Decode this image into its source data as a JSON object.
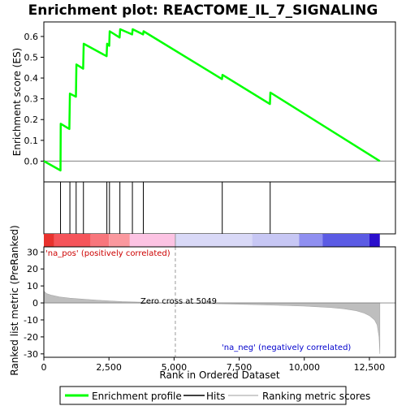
{
  "chart_data": {
    "type": "line",
    "title": "Enrichment plot: REACTOME_IL_7_SIGNALING",
    "xlabel": "Rank in Ordered Dataset",
    "xlim": [
      0,
      13500
    ],
    "x_ticks": [
      0,
      2500,
      5000,
      7500,
      10000,
      12500
    ],
    "x_tick_labels": [
      "0",
      "2,500",
      "5,000",
      "7,500",
      "10,000",
      "12,500"
    ],
    "panels": {
      "es": {
        "ylabel": "Enrichment score (ES)",
        "ylim": [
          -0.1,
          0.67
        ],
        "y_ticks": [
          0.0,
          0.1,
          0.2,
          0.3,
          0.4,
          0.5,
          0.6
        ],
        "y_tick_labels": [
          "0.0",
          "0.1",
          "0.2",
          "0.3",
          "0.4",
          "0.5",
          "0.6"
        ]
      },
      "metric": {
        "ylabel": "Ranked list metric (PreRanked)",
        "ylim": [
          -32,
          33
        ],
        "y_ticks": [
          -30,
          -20,
          -10,
          0,
          10,
          20,
          30
        ],
        "y_tick_labels": [
          "-30",
          "-20",
          "-10",
          "0",
          "10",
          "20",
          "30"
        ]
      }
    },
    "series": [
      {
        "name": "Enrichment profile",
        "color": "#00ff00",
        "x": [
          0,
          640,
          650,
          980,
          1000,
          1230,
          1250,
          1510,
          1530,
          2410,
          2430,
          2510,
          2530,
          2910,
          2930,
          3390,
          3410,
          3810,
          3830,
          6840,
          6860,
          8680,
          8700,
          12900
        ],
        "y": [
          0.0,
          -0.045,
          0.18,
          0.155,
          0.325,
          0.31,
          0.465,
          0.445,
          0.565,
          0.505,
          0.565,
          0.555,
          0.625,
          0.595,
          0.635,
          0.61,
          0.635,
          0.61,
          0.625,
          0.395,
          0.415,
          0.275,
          0.33,
          0.0
        ]
      }
    ],
    "hits": [
      640,
      1000,
      1240,
      1520,
      2420,
      2520,
      2920,
      3400,
      3820,
      6850,
      8690
    ],
    "metric_series": {
      "name": "Ranking metric scores",
      "color": "#bebebe",
      "x": [
        0,
        100,
        300,
        600,
        1000,
        1500,
        2000,
        2500,
        3000,
        4000,
        5049,
        6000,
        7000,
        8000,
        9000,
        10000,
        11000,
        11500,
        12000,
        12300,
        12500,
        12700,
        12800,
        12870,
        12900
      ],
      "y": [
        7.0,
        5.5,
        4.5,
        3.5,
        2.8,
        2.2,
        1.7,
        1.2,
        0.8,
        0.3,
        0.0,
        -0.3,
        -0.6,
        -1.0,
        -1.4,
        -1.9,
        -2.7,
        -3.4,
        -4.6,
        -6.0,
        -7.5,
        -10.0,
        -13.0,
        -20.0,
        -30.0
      ]
    },
    "zero_cross": 5049,
    "annotations": {
      "pos_label": "'na_pos' (positively correlated)",
      "neg_label": "'na_neg' (negatively correlated)",
      "zero_cross_label": "Zero cross at 5049"
    },
    "colorbar": [
      {
        "x0": 0,
        "x1": 400,
        "color": "#e8322e"
      },
      {
        "x0": 400,
        "x1": 1800,
        "color": "#f5545a"
      },
      {
        "x0": 1800,
        "x1": 2500,
        "color": "#f8767c"
      },
      {
        "x0": 2500,
        "x1": 3300,
        "color": "#fa989e"
      },
      {
        "x0": 3300,
        "x1": 5049,
        "color": "#fcc3e3"
      },
      {
        "x0": 5049,
        "x1": 8000,
        "color": "#d9d9f7"
      },
      {
        "x0": 8000,
        "x1": 9800,
        "color": "#c7c7f4"
      },
      {
        "x0": 9800,
        "x1": 10700,
        "color": "#8f8ff0"
      },
      {
        "x0": 10700,
        "x1": 12500,
        "color": "#5b5be4"
      },
      {
        "x0": 12500,
        "x1": 12900,
        "color": "#2a0fcc"
      }
    ],
    "legend": {
      "placement": "bottom",
      "items": [
        "Enrichment profile",
        "Hits",
        "Ranking metric scores"
      ]
    }
  }
}
